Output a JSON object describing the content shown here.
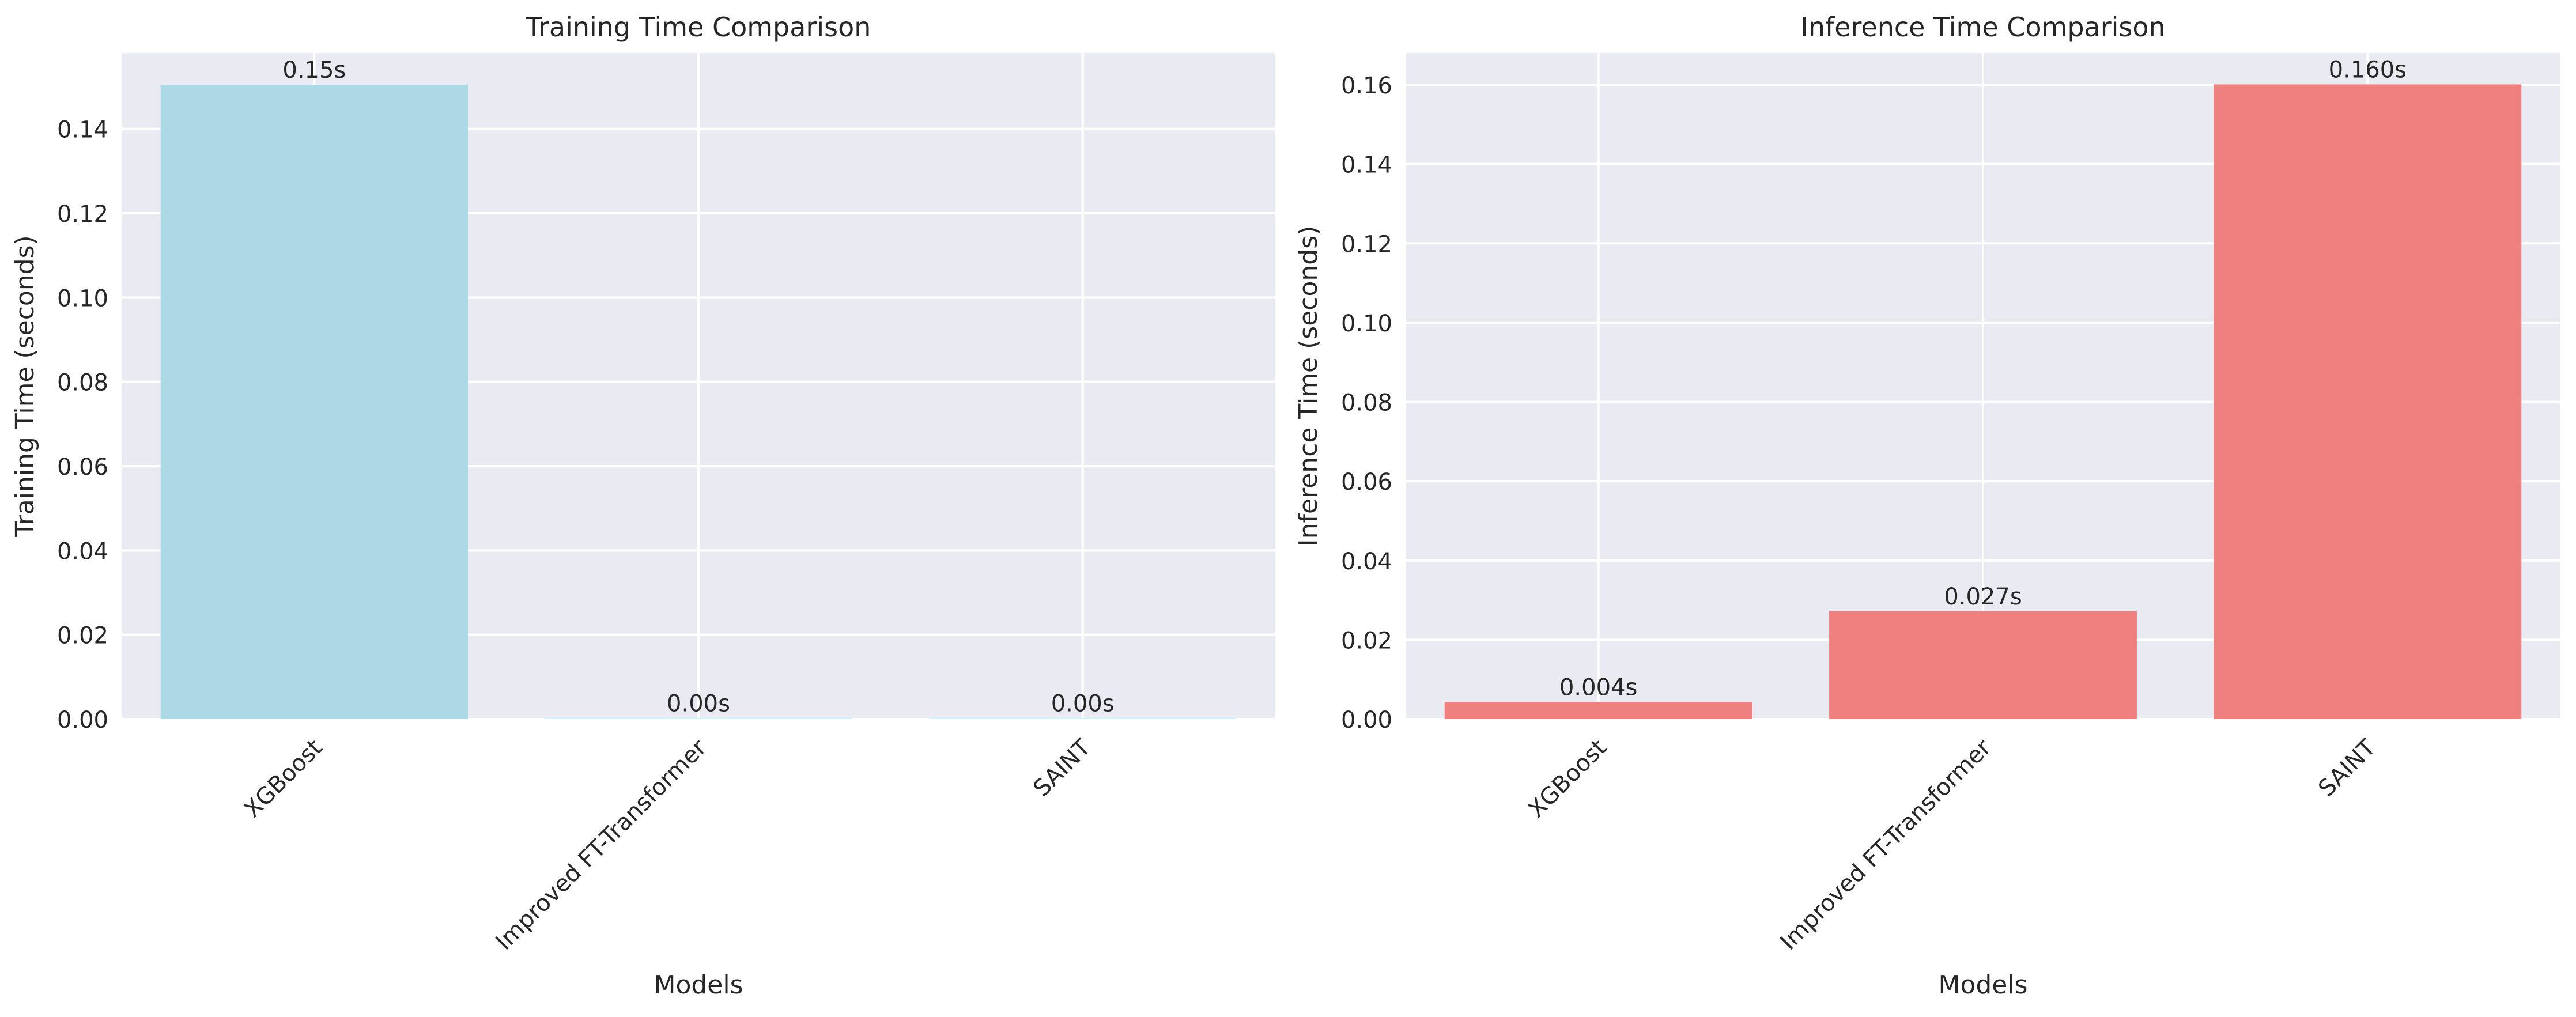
{
  "chart_data": [
    {
      "type": "bar",
      "title": "Training Time Comparison",
      "xlabel": "Models",
      "ylabel": "Training Time (seconds)",
      "categories": [
        "XGBoost",
        "Improved FT-Transformer",
        "SAINT"
      ],
      "values": [
        0.1505,
        0.0002,
        0.0002
      ],
      "bar_labels": [
        "0.15s",
        "0.00s",
        "0.00s"
      ],
      "ylim": [
        0,
        0.158
      ],
      "yticks": [
        0,
        0.02,
        0.04,
        0.06,
        0.08,
        0.1,
        0.12,
        0.14
      ],
      "ytick_labels": [
        "0.00",
        "0.02",
        "0.04",
        "0.06",
        "0.08",
        "0.10",
        "0.12",
        "0.14"
      ],
      "bar_color": "#ADD8E6",
      "grid": true,
      "background": "#EAEAF2"
    },
    {
      "type": "bar",
      "title": "Inference Time Comparison",
      "xlabel": "Models",
      "ylabel": "Inference Time (seconds)",
      "categories": [
        "XGBoost",
        "Improved FT-Transformer",
        "SAINT"
      ],
      "values": [
        0.0043,
        0.0272,
        0.1601
      ],
      "bar_labels": [
        "0.004s",
        "0.027s",
        "0.160s"
      ],
      "ylim": [
        0,
        0.168
      ],
      "yticks": [
        0,
        0.02,
        0.04,
        0.06,
        0.08,
        0.1,
        0.12,
        0.14,
        0.16
      ],
      "ytick_labels": [
        "0.00",
        "0.02",
        "0.04",
        "0.06",
        "0.08",
        "0.10",
        "0.12",
        "0.14",
        "0.16"
      ],
      "bar_color": "#F08080",
      "grid": true,
      "background": "#EAEAF2"
    }
  ]
}
